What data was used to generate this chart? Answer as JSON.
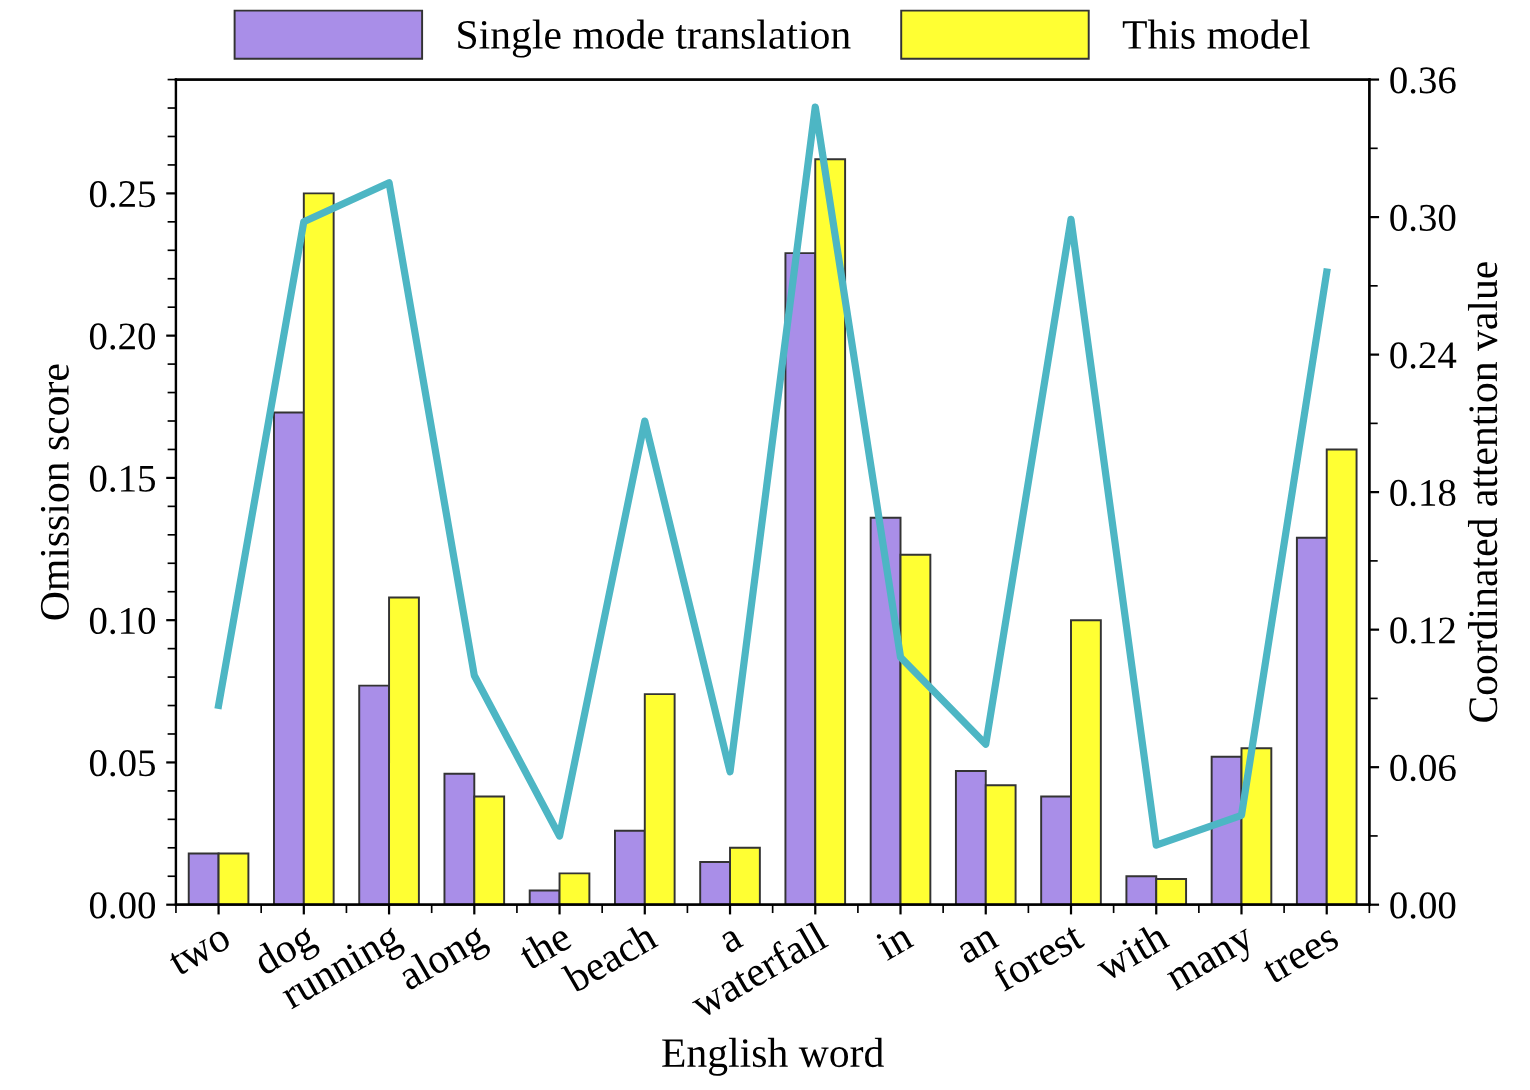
{
  "chart_data": {
    "type": "bar",
    "xlabel": "English word",
    "ylabel": "Omission score",
    "y2label": "Coordinated attention value",
    "categories": [
      "two",
      "dog",
      "running",
      "along",
      "the",
      "beach",
      "a",
      "waterfall",
      "in",
      "an",
      "forest",
      "with",
      "many",
      "trees"
    ],
    "series": [
      {
        "name": "Single mode translation",
        "color": "#a98ee8",
        "values": [
          0.018,
          0.173,
          0.077,
          0.046,
          0.005,
          0.026,
          0.015,
          0.229,
          0.136,
          0.047,
          0.038,
          0.01,
          0.052,
          0.129
        ]
      },
      {
        "name": "This model",
        "color": "#ffff33",
        "values": [
          0.018,
          0.25,
          0.108,
          0.038,
          0.011,
          0.074,
          0.02,
          0.262,
          0.123,
          0.042,
          0.1,
          0.009,
          0.055,
          0.16
        ]
      },
      {
        "type": "line",
        "axis": "y2",
        "color": "#4db6c4",
        "values": [
          0.087,
          0.298,
          0.315,
          0.1,
          0.03,
          0.211,
          0.058,
          0.348,
          0.108,
          0.07,
          0.299,
          0.026,
          0.039,
          0.276
        ]
      }
    ],
    "ylim": [
      0,
      0.29
    ],
    "yticks": [
      {
        "value": 0,
        "label": "0.00"
      },
      {
        "value": 0.05,
        "label": "0.05"
      },
      {
        "value": 0.1,
        "label": "0.10"
      },
      {
        "value": 0.15,
        "label": "0.15"
      },
      {
        "value": 0.2,
        "label": "0.20"
      },
      {
        "value": 0.25,
        "label": "0.25"
      }
    ],
    "y2lim": [
      0,
      0.36
    ],
    "y2ticks": [
      {
        "value": 0,
        "label": "0.00"
      },
      {
        "value": 0.06,
        "label": "0.06"
      },
      {
        "value": 0.12,
        "label": "0.12"
      },
      {
        "value": 0.18,
        "label": "0.18"
      },
      {
        "value": 0.24,
        "label": "0.24"
      },
      {
        "value": 0.3,
        "label": "0.30"
      },
      {
        "value": 0.36,
        "label": "0.36"
      }
    ],
    "legend": "top",
    "grid": false,
    "marker": "none",
    "line_style": "solid"
  }
}
